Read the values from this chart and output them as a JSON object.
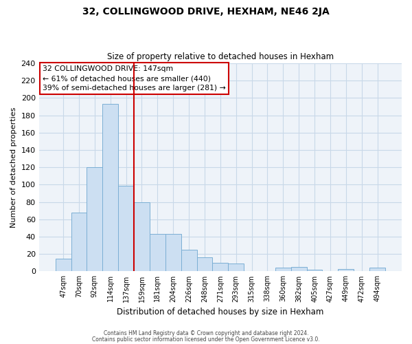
{
  "title1": "32, COLLINGWOOD DRIVE, HEXHAM, NE46 2JA",
  "title2": "Size of property relative to detached houses in Hexham",
  "xlabel": "Distribution of detached houses by size in Hexham",
  "ylabel": "Number of detached properties",
  "bar_labels": [
    "47sqm",
    "70sqm",
    "92sqm",
    "114sqm",
    "137sqm",
    "159sqm",
    "181sqm",
    "204sqm",
    "226sqm",
    "248sqm",
    "271sqm",
    "293sqm",
    "315sqm",
    "338sqm",
    "360sqm",
    "382sqm",
    "405sqm",
    "427sqm",
    "449sqm",
    "472sqm",
    "494sqm"
  ],
  "bar_heights": [
    15,
    68,
    120,
    193,
    99,
    80,
    43,
    43,
    25,
    16,
    10,
    9,
    0,
    0,
    4,
    5,
    2,
    0,
    3,
    0,
    4
  ],
  "bar_color": "#ccdff2",
  "bar_edge_color": "#7bafd4",
  "vline_x": 4.5,
  "vline_color": "#cc0000",
  "ylim": [
    0,
    240
  ],
  "yticks": [
    0,
    20,
    40,
    60,
    80,
    100,
    120,
    140,
    160,
    180,
    200,
    220,
    240
  ],
  "annotation_title": "32 COLLINGWOOD DRIVE: 147sqm",
  "annotation_line1": "← 61% of detached houses are smaller (440)",
  "annotation_line2": "39% of semi-detached houses are larger (281) →",
  "box_color": "#ffffff",
  "box_edge_color": "#cc0000",
  "footer1": "Contains HM Land Registry data © Crown copyright and database right 2024.",
  "footer2": "Contains public sector information licensed under the Open Government Licence v3.0.",
  "bg_color": "#eef3f9",
  "grid_color": "#c8d8e8"
}
